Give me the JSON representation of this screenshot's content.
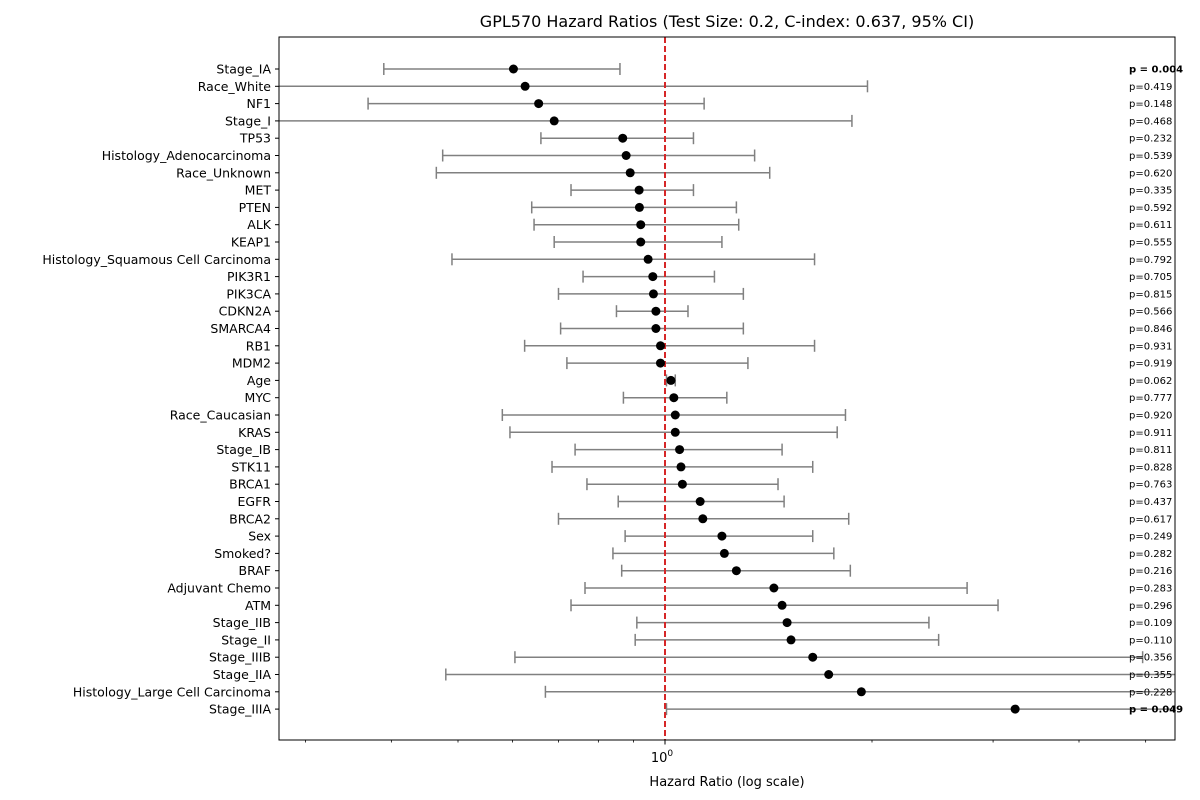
{
  "chart_data": {
    "type": "forest",
    "title": "GPL570 Hazard Ratios (Test Size: 0.2, C-index: 0.637, 95% CI)",
    "xlabel": "Hazard Ratio (log scale)",
    "x_scale": "log",
    "xlim": [
      0.25,
      7.3
    ],
    "x_major_ticks": [
      1
    ],
    "x_major_tick_labels": [
      "10^0"
    ],
    "x_minor_ticks": [
      0.3,
      0.4,
      0.5,
      0.6,
      0.7,
      0.8,
      0.9,
      2,
      3,
      4,
      5,
      6,
      7
    ],
    "reference_line": 1,
    "reference_line_color": "#d62728",
    "point_color": "#000000",
    "ci_color": "#808080",
    "grid": false,
    "rows": [
      {
        "label": "Stage_IA",
        "hr": 0.602,
        "lo": 0.39,
        "hi": 0.86,
        "p": "p = 0.004",
        "bold": true
      },
      {
        "label": "Race_White",
        "hr": 0.626,
        "lo": 0.2,
        "hi": 1.97,
        "p": "p=0.419",
        "bold": false
      },
      {
        "label": "NF1",
        "hr": 0.655,
        "lo": 0.37,
        "hi": 1.14,
        "p": "p=0.148",
        "bold": false
      },
      {
        "label": "Stage_I",
        "hr": 0.69,
        "lo": 0.25,
        "hi": 1.87,
        "p": "p=0.468",
        "bold": false
      },
      {
        "label": "TP53",
        "hr": 0.868,
        "lo": 0.66,
        "hi": 1.1,
        "p": "p=0.232",
        "bold": false
      },
      {
        "label": "Histology_Adenocarcinoma",
        "hr": 0.878,
        "lo": 0.475,
        "hi": 1.35,
        "p": "p=0.539",
        "bold": false
      },
      {
        "label": "Race_Unknown",
        "hr": 0.89,
        "lo": 0.465,
        "hi": 1.42,
        "p": "p=0.620",
        "bold": false
      },
      {
        "label": "MET",
        "hr": 0.917,
        "lo": 0.73,
        "hi": 1.1,
        "p": "p=0.335",
        "bold": false
      },
      {
        "label": "PTEN",
        "hr": 0.918,
        "lo": 0.64,
        "hi": 1.27,
        "p": "p=0.592",
        "bold": false
      },
      {
        "label": "ALK",
        "hr": 0.922,
        "lo": 0.645,
        "hi": 1.28,
        "p": "p=0.611",
        "bold": false
      },
      {
        "label": "KEAP1",
        "hr": 0.922,
        "lo": 0.69,
        "hi": 1.21,
        "p": "p=0.555",
        "bold": false
      },
      {
        "label": "Histology_Squamous Cell Carcinoma",
        "hr": 0.945,
        "lo": 0.49,
        "hi": 1.65,
        "p": "p=0.792",
        "bold": false
      },
      {
        "label": "PIK3R1",
        "hr": 0.96,
        "lo": 0.76,
        "hi": 1.18,
        "p": "p=0.705",
        "bold": false
      },
      {
        "label": "PIK3CA",
        "hr": 0.962,
        "lo": 0.7,
        "hi": 1.3,
        "p": "p=0.815",
        "bold": false
      },
      {
        "label": "CDKN2A",
        "hr": 0.97,
        "lo": 0.85,
        "hi": 1.08,
        "p": "p=0.566",
        "bold": false
      },
      {
        "label": "SMARCA4",
        "hr": 0.97,
        "lo": 0.705,
        "hi": 1.3,
        "p": "p=0.846",
        "bold": false
      },
      {
        "label": "RB1",
        "hr": 0.985,
        "lo": 0.625,
        "hi": 1.65,
        "p": "p=0.931",
        "bold": false
      },
      {
        "label": "MDM2",
        "hr": 0.985,
        "lo": 0.72,
        "hi": 1.32,
        "p": "p=0.919",
        "bold": false
      },
      {
        "label": "Age",
        "hr": 1.02,
        "lo": 1.005,
        "hi": 1.035,
        "p": "p=0.062",
        "bold": false
      },
      {
        "label": "MYC",
        "hr": 1.03,
        "lo": 0.87,
        "hi": 1.23,
        "p": "p=0.777",
        "bold": false
      },
      {
        "label": "Race_Caucasian",
        "hr": 1.035,
        "lo": 0.58,
        "hi": 1.83,
        "p": "p=0.920",
        "bold": false
      },
      {
        "label": "KRAS",
        "hr": 1.035,
        "lo": 0.595,
        "hi": 1.78,
        "p": "p=0.911",
        "bold": false
      },
      {
        "label": "Stage_IB",
        "hr": 1.05,
        "lo": 0.74,
        "hi": 1.48,
        "p": "p=0.811",
        "bold": false
      },
      {
        "label": "STK11",
        "hr": 1.055,
        "lo": 0.685,
        "hi": 1.64,
        "p": "p=0.828",
        "bold": false
      },
      {
        "label": "BRCA1",
        "hr": 1.06,
        "lo": 0.77,
        "hi": 1.46,
        "p": "p=0.763",
        "bold": false
      },
      {
        "label": "EGFR",
        "hr": 1.125,
        "lo": 0.855,
        "hi": 1.49,
        "p": "p=0.437",
        "bold": false
      },
      {
        "label": "BRCA2",
        "hr": 1.135,
        "lo": 0.7,
        "hi": 1.85,
        "p": "p=0.617",
        "bold": false
      },
      {
        "label": "Sex",
        "hr": 1.21,
        "lo": 0.875,
        "hi": 1.64,
        "p": "p=0.249",
        "bold": false
      },
      {
        "label": "Smoked?",
        "hr": 1.22,
        "lo": 0.84,
        "hi": 1.76,
        "p": "p=0.282",
        "bold": false
      },
      {
        "label": "BRAF",
        "hr": 1.27,
        "lo": 0.865,
        "hi": 1.86,
        "p": "p=0.216",
        "bold": false
      },
      {
        "label": "Adjuvant Chemo",
        "hr": 1.44,
        "lo": 0.765,
        "hi": 2.75,
        "p": "p=0.283",
        "bold": false
      },
      {
        "label": "ATM",
        "hr": 1.48,
        "lo": 0.73,
        "hi": 3.05,
        "p": "p=0.296",
        "bold": false
      },
      {
        "label": "Stage_IIB",
        "hr": 1.505,
        "lo": 0.91,
        "hi": 2.42,
        "p": "p=0.109",
        "bold": false
      },
      {
        "label": "Stage_II",
        "hr": 1.525,
        "lo": 0.905,
        "hi": 2.5,
        "p": "p=0.110",
        "bold": false
      },
      {
        "label": "Stage_IIIB",
        "hr": 1.64,
        "lo": 0.605,
        "hi": 4.95,
        "p": "p=0.356",
        "bold": false
      },
      {
        "label": "Stage_IIA",
        "hr": 1.73,
        "lo": 0.48,
        "hi": 7.2,
        "p": "p=0.355",
        "bold": false
      },
      {
        "label": "Histology_Large Cell Carcinoma",
        "hr": 1.93,
        "lo": 0.67,
        "hi": 7.3,
        "p": "p=0.228",
        "bold": false
      },
      {
        "label": "Stage_IIIA",
        "hr": 3.23,
        "lo": 1.005,
        "hi": 7.3,
        "p": "p = 0.049",
        "bold": true
      }
    ]
  }
}
